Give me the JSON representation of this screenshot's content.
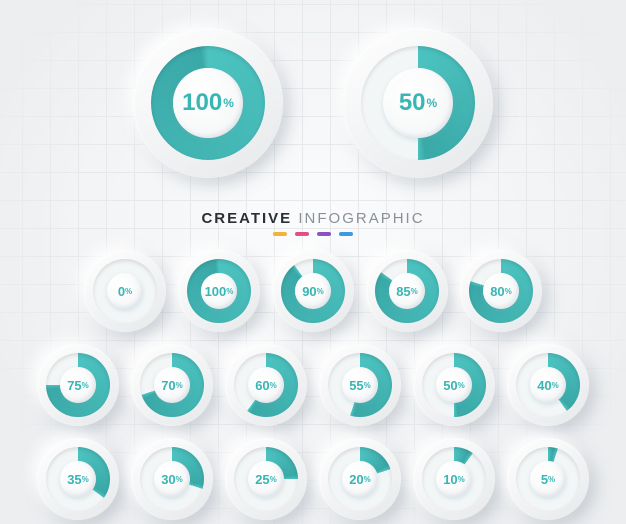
{
  "title": {
    "strong": "CREATIVE",
    "light": "INFOGRAPHIC",
    "color_strong": "#2b2f33",
    "color_light": "#8a9096"
  },
  "palette": {
    "arc": "#4cc3c0",
    "arc_shade": "#3aa9a8",
    "empty": "#f3f6f7",
    "text": "#37b6b4",
    "bg_button_light": "#ffffff",
    "bg_button_dark": "#e6e8ea"
  },
  "accent_dots": [
    "#f3b23a",
    "#e2477e",
    "#8a4fc0",
    "#3a9be0"
  ],
  "hero": [
    {
      "value": 100
    },
    {
      "value": 50
    }
  ],
  "rows": [
    [
      {
        "value": 0
      },
      {
        "value": 100
      },
      {
        "value": 90
      },
      {
        "value": 85
      },
      {
        "value": 80
      }
    ],
    [
      {
        "value": 75
      },
      {
        "value": 70
      },
      {
        "value": 60
      },
      {
        "value": 55
      },
      {
        "value": 50
      },
      {
        "value": 40
      }
    ],
    [
      {
        "value": 35
      },
      {
        "value": 30
      },
      {
        "value": 25
      },
      {
        "value": 20
      },
      {
        "value": 10
      },
      {
        "value": 5
      }
    ]
  ],
  "sizes": {
    "big_ring_w": 22,
    "sm_ring_w": 14
  }
}
